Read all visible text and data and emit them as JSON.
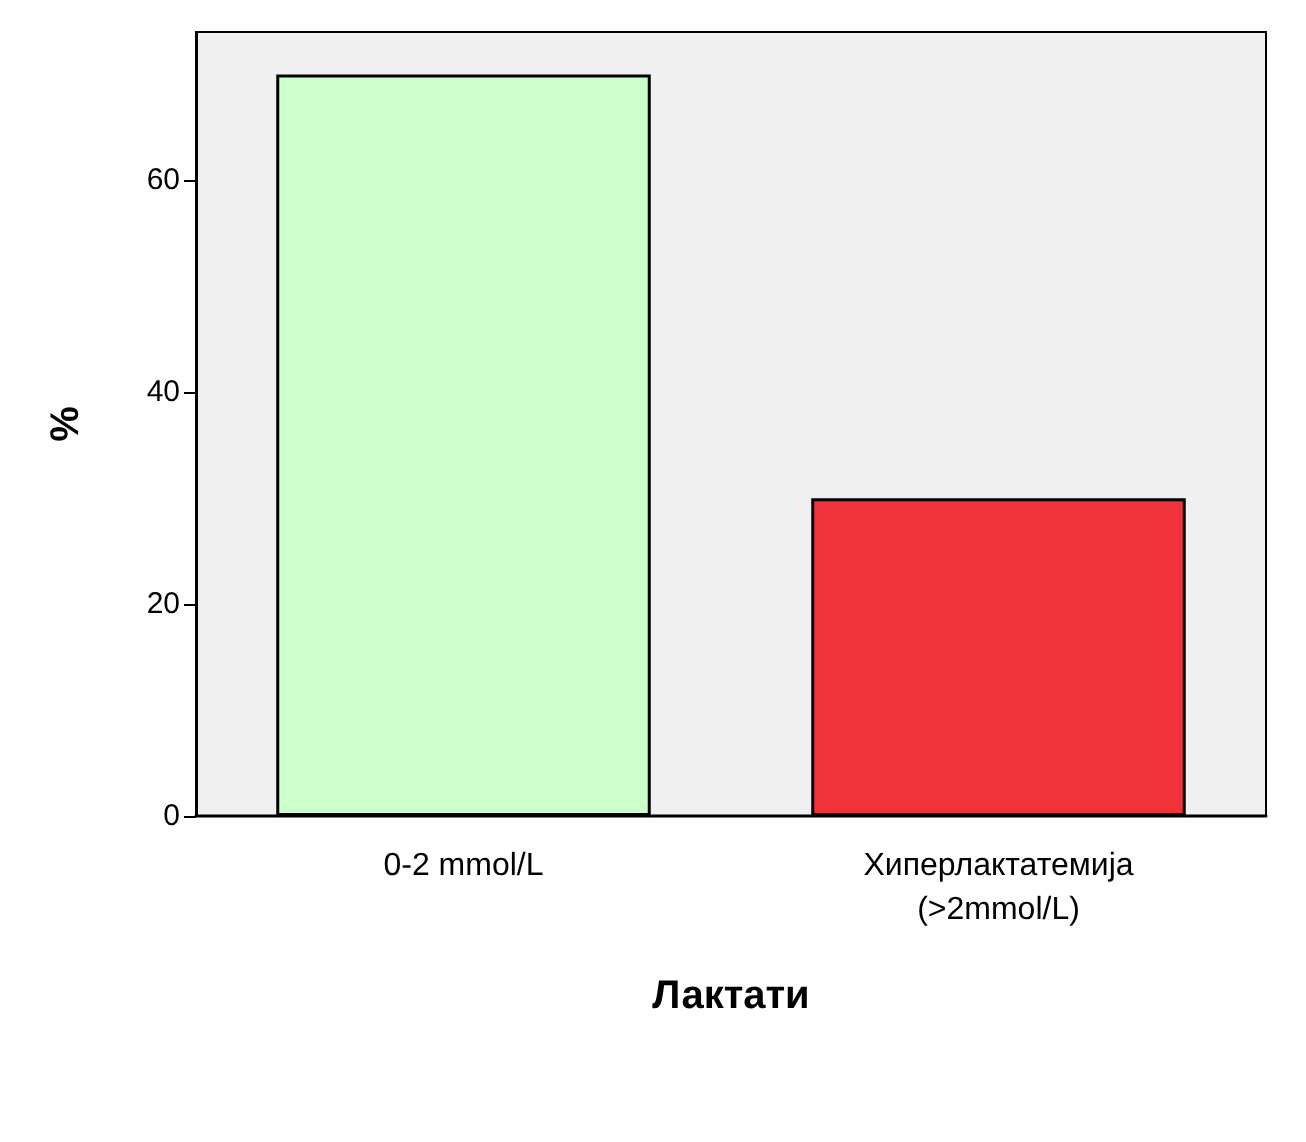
{
  "chart_data": {
    "type": "bar",
    "xlabel": "Лактати",
    "ylabel": "%",
    "categories": [
      "0-2 mmol/L",
      "Хиперлактатемија\n(>2mmol/L)"
    ],
    "values": [
      70,
      30
    ],
    "colors": [
      "#ccffcc",
      "#f0323a"
    ],
    "ylim": [
      0,
      74
    ],
    "yticks": [
      0,
      20,
      40,
      60
    ]
  }
}
